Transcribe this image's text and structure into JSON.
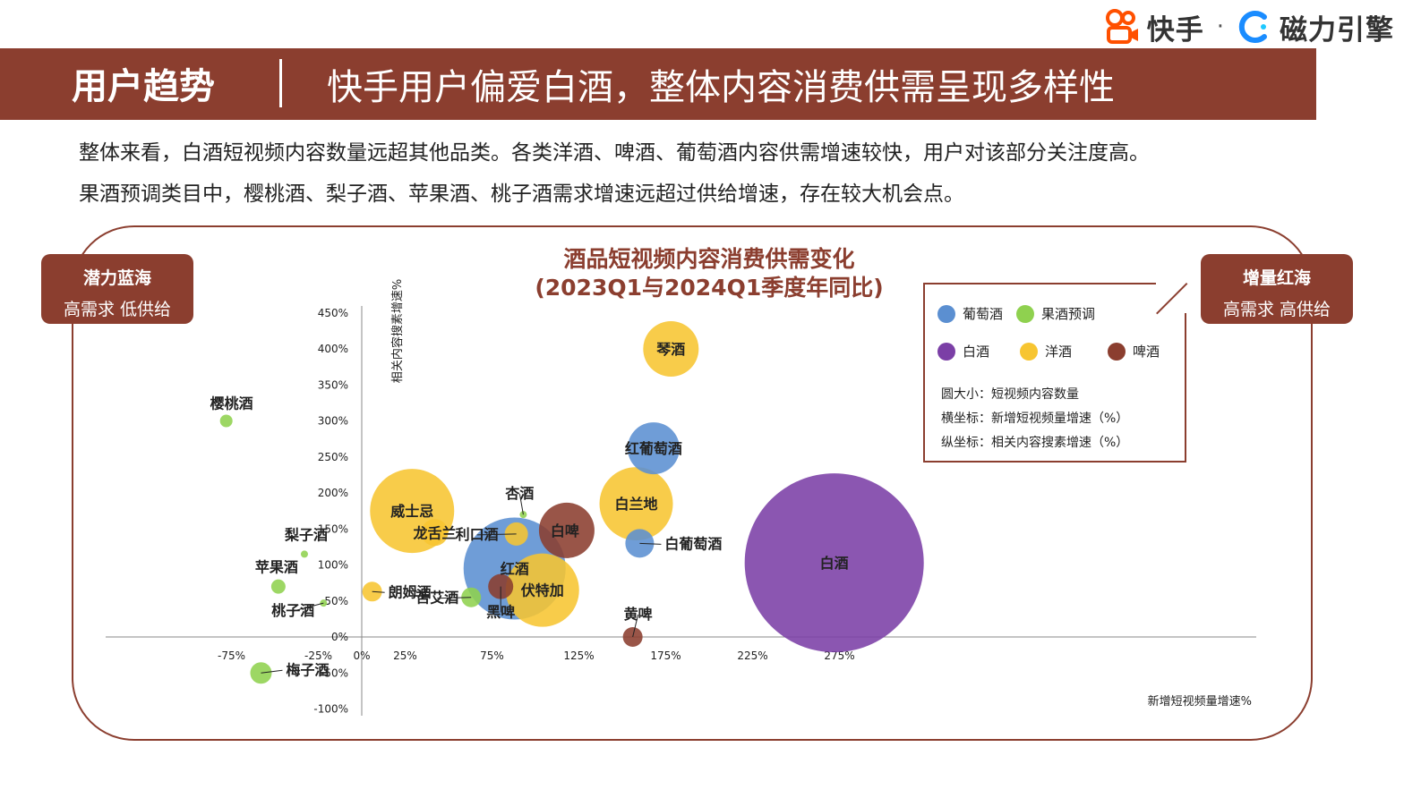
{
  "brand": {
    "name1": "快手",
    "dot": "·",
    "name2": "磁力引擎"
  },
  "header": {
    "section": "用户趋势",
    "title": "快手用户偏爱白酒，整体内容消费供需呈现多样性"
  },
  "intro": {
    "line1": "整体来看，白酒短视频内容数量远超其他品类。各类洋酒、啤酒、葡萄酒内容供需增速较快，用户对该部分关注度高。",
    "line2": "果酒预调类目中，樱桃酒、梨子酒、苹果酒、桃子酒需求增速远超过供给增速，存在较大机会点。"
  },
  "corners": {
    "left": {
      "title": "潜力蓝海",
      "sub": "高需求 低供给"
    },
    "right": {
      "title": "增量红海",
      "sub": "高需求 高供给"
    }
  },
  "legend": {
    "items": [
      {
        "label": "葡萄酒",
        "color": "#5b8fd1"
      },
      {
        "label": "果酒预调",
        "color": "#8fd14f"
      },
      {
        "label": "白酒",
        "color": "#7b3fa6"
      },
      {
        "label": "洋酒",
        "color": "#f7c531"
      },
      {
        "label": "啤酒",
        "color": "#8b3e2f"
      }
    ],
    "notes": [
      "圆大小：短视频内容数量",
      "横坐标：新增短视频量增速（%）",
      "纵坐标：相关内容搜素增速（%）"
    ]
  },
  "chart_data": {
    "type": "scatter",
    "title": "酒品短视频内容消费供需变化",
    "subtitle": "(2023Q1与2024Q1季度年同比)",
    "xlabel": "新增短视频量增速%",
    "ylabel": "相关内容搜素增速%",
    "xlim": [
      -85,
      305
    ],
    "ylim": [
      -110,
      470
    ],
    "x_ticks": [
      "-75%",
      "-25%",
      "0%",
      "25%",
      "75%",
      "125%",
      "175%",
      "225%",
      "275%"
    ],
    "x_tick_values": [
      -75,
      -25,
      0,
      25,
      75,
      125,
      175,
      225,
      275
    ],
    "y_ticks": [
      "450%",
      "400%",
      "350%",
      "300%",
      "250%",
      "200%",
      "150%",
      "100%",
      "50%",
      "0%",
      "-50%",
      "-100%"
    ],
    "y_tick_values": [
      450,
      400,
      350,
      300,
      250,
      200,
      150,
      100,
      50,
      0,
      -50,
      -100
    ],
    "series": [
      {
        "name": "葡萄酒",
        "color": "#5b8fd1",
        "points": [
          {
            "label": "红酒",
            "x": 88,
            "y": 95,
            "size": 57
          },
          {
            "label": "红葡萄酒",
            "x": 168,
            "y": 262,
            "size": 29
          },
          {
            "label": "白葡萄酒",
            "x": 160,
            "y": 130,
            "size": 16
          }
        ]
      },
      {
        "name": "果酒预调",
        "color": "#8fd14f",
        "points": [
          {
            "label": "樱桃酒",
            "x": -78,
            "y": 300,
            "size": 7
          },
          {
            "label": "梨子酒",
            "x": -33,
            "y": 115,
            "size": 4
          },
          {
            "label": "苹果酒",
            "x": -48,
            "y": 70,
            "size": 8
          },
          {
            "label": "桃子酒",
            "x": -22,
            "y": 47,
            "size": 4
          },
          {
            "label": "梅子酒",
            "x": -58,
            "y": -50,
            "size": 12
          },
          {
            "label": "苦艾酒",
            "x": 63,
            "y": 55,
            "size": 11
          },
          {
            "label": "杏酒",
            "x": 93,
            "y": 170,
            "size": 4
          }
        ]
      },
      {
        "name": "白酒",
        "color": "#7b3fa6",
        "points": [
          {
            "label": "白酒",
            "x": 272,
            "y": 103,
            "size": 100
          }
        ]
      },
      {
        "name": "洋酒",
        "color": "#f7c531",
        "points": [
          {
            "label": "琴酒",
            "x": 178,
            "y": 400,
            "size": 31
          },
          {
            "label": "白兰地",
            "x": 158,
            "y": 185,
            "size": 41
          },
          {
            "label": "威士忌",
            "x": 29,
            "y": 175,
            "size": 47
          },
          {
            "label": "龙舌兰",
            "x": 42,
            "y": 145,
            "size": 15
          },
          {
            "label": "利口酒",
            "x": 89,
            "y": 143,
            "size": 13
          },
          {
            "label": "伏特加",
            "x": 104,
            "y": 65,
            "size": 41
          },
          {
            "label": "朗姆酒",
            "x": 6,
            "y": 63,
            "size": 11
          }
        ]
      },
      {
        "name": "啤酒",
        "color": "#8b3e2f",
        "points": [
          {
            "label": "白啤",
            "x": 118,
            "y": 148,
            "size": 31
          },
          {
            "label": "黑啤",
            "x": 80,
            "y": 70,
            "size": 14
          },
          {
            "label": "黄啤",
            "x": 156,
            "y": 0,
            "size": 11
          }
        ]
      }
    ]
  }
}
